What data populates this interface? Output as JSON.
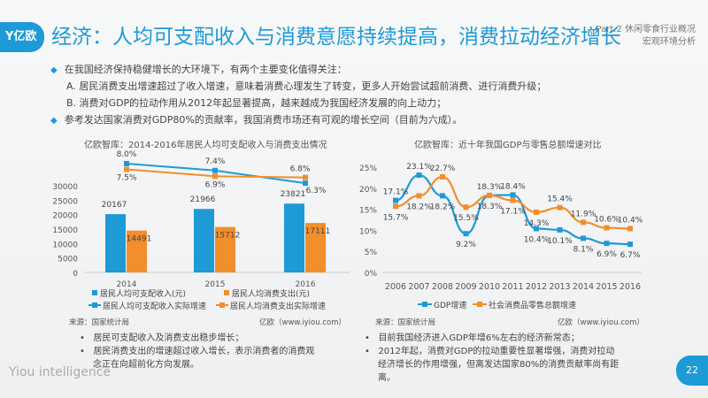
{
  "header": {
    "logo": "Y亿欧",
    "title": "经济：人均可支配收入与消费意愿持续提高，消费拉动经济增长",
    "part": "Part.2 休闲零食行业概况",
    "section": "宏观环境分析"
  },
  "intro": {
    "lines": [
      "在我国经济保持稳健增长的大环境下，有两个主要变化值得关注：",
      "A.   居民消费支出增速超过了收入增速，意味着消费心理发生了转变，更多人开始尝试超前消费、进行消费升级；",
      "B.   消费对GDP的拉动作用从2012年起显著提高，越来越成为我国经济发展的向上动力；",
      "参考发达国家消费对GDP80%的贡献率，我国消费市场还有可观的增长空间（目前为六成）。"
    ]
  },
  "colors": {
    "blue": "#1e9ad6",
    "orange": "#f28e2b"
  },
  "chart_data": [
    {
      "type": "bar",
      "title": "亿欧智库：2014-2016年居民人均可支配收入与消费支出情况",
      "categories": [
        "2014",
        "2015",
        "2016"
      ],
      "ylim": [
        0,
        30000
      ],
      "yticks": [
        "0",
        "5000",
        "10000",
        "15000",
        "20000",
        "25000",
        "30000"
      ],
      "series": [
        {
          "name": "居民人均可支配收入(元)",
          "values": [
            20167,
            21966,
            23821
          ]
        },
        {
          "name": "居民人均消费支出(元)",
          "values": [
            14491,
            15712,
            17111
          ]
        }
      ],
      "line_series": [
        {
          "name": "居民人均可支配收入实际增速",
          "values": [
            8.0,
            7.4,
            6.3
          ],
          "labels": [
            "8.0%",
            "7.4%",
            "6.3%"
          ]
        },
        {
          "name": "居民人均消费支出实际增速",
          "values": [
            7.5,
            6.9,
            6.8
          ],
          "labels": [
            "7.5%",
            "6.9%",
            "6.8%"
          ]
        }
      ],
      "source": "来源：国家统计局",
      "credit": "亿欧（www.iyiou.com）"
    },
    {
      "type": "line",
      "title": "亿欧智库：近十年我国GDP与零售总额增速对比",
      "categories": [
        "2006",
        "2007",
        "2008",
        "2009",
        "2010",
        "2011",
        "2012",
        "2013",
        "2014",
        "2015",
        "2016"
      ],
      "ylim": [
        0,
        25
      ],
      "yticks": [
        "0%",
        "5%",
        "10%",
        "15%",
        "20%",
        "25%"
      ],
      "series": [
        {
          "name": "GDP增速",
          "values": [
            17.1,
            23.1,
            18.2,
            9.2,
            18.3,
            18.4,
            10.4,
            10.1,
            8.1,
            6.9,
            6.7
          ]
        },
        {
          "name": "社会消费品零售总额增速",
          "values": [
            15.7,
            18.2,
            22.7,
            15.5,
            18.3,
            17.1,
            14.3,
            15.4,
            11.9,
            10.6,
            10.4
          ]
        }
      ],
      "source": "来源：国家统计局",
      "credit": "亿欧（www.iyiou.com）"
    }
  ],
  "notes": {
    "left": [
      "居民可支配收入及消费支出稳步增长；",
      "居民消费支出的增速超过收入增长，表示消费者的消费观念正在向超前化方向发展。"
    ],
    "right": [
      "目前我国经济进入GDP年增6%左右的经济新常态；",
      "2012年起，消费对GDP的拉动重要性显著增强，消费对拉动经济增长的作用增强，但离发达国家80%的消费贡献率尚有距离。"
    ]
  },
  "footer": {
    "brand": "Yiou intelligence",
    "page": "22"
  }
}
